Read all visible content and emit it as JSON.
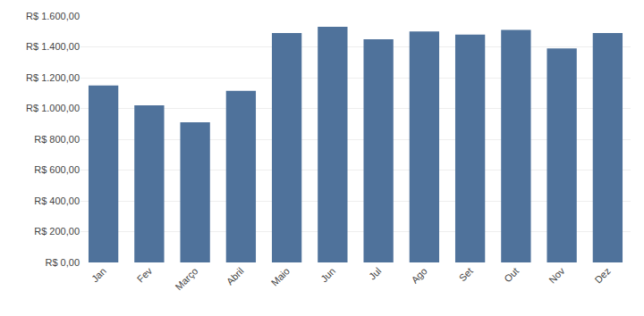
{
  "chart_data": {
    "type": "bar",
    "categories": [
      "Jan",
      "Fev",
      "Março",
      "Abril",
      "Maio",
      "Jun",
      "Jul",
      "Ago",
      "Set",
      "Out",
      "Nov",
      "Dez"
    ],
    "values": [
      1150,
      1020,
      910,
      1115,
      1490,
      1530,
      1450,
      1500,
      1480,
      1510,
      1390,
      1490
    ],
    "color": "#4f729b",
    "ylim": [
      0,
      1600
    ],
    "yticks": [
      {
        "value": 0,
        "label": "R$ 0,00"
      },
      {
        "value": 200,
        "label": "R$ 200,00"
      },
      {
        "value": 400,
        "label": "R$ 400,00"
      },
      {
        "value": 600,
        "label": "R$ 600,00"
      },
      {
        "value": 800,
        "label": "R$ 800,00"
      },
      {
        "value": 1000,
        "label": "R$ 1.000,00"
      },
      {
        "value": 1200,
        "label": "R$ 1.200,00"
      },
      {
        "value": 1400,
        "label": "R$ 1.400,00"
      },
      {
        "value": 1600,
        "label": "R$ 1.600,00"
      }
    ],
    "grid": true
  }
}
